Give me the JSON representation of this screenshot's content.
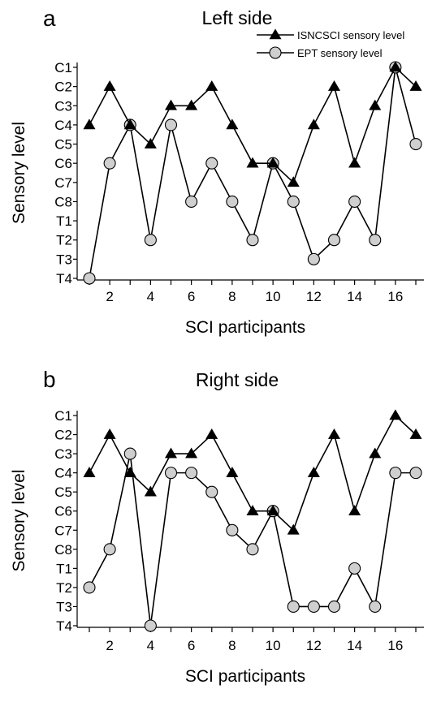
{
  "chart_data": [
    {
      "panel_letter": "a",
      "type": "line",
      "title": "Left side",
      "xlabel": "SCI participants",
      "ylabel": "Sensory level",
      "x": [
        1,
        2,
        3,
        4,
        5,
        6,
        7,
        8,
        9,
        10,
        11,
        12,
        13,
        14,
        15,
        16,
        17
      ],
      "x_tick_labels": [
        "2",
        "4",
        "6",
        "8",
        "10",
        "12",
        "14",
        "16"
      ],
      "x_tick_values": [
        2,
        4,
        6,
        8,
        10,
        12,
        14,
        16
      ],
      "y_categories": [
        "C1",
        "C2",
        "C3",
        "C4",
        "C5",
        "C6",
        "C7",
        "C8",
        "T1",
        "T2",
        "T3",
        "T4"
      ],
      "y_axis_inverted": true,
      "series": [
        {
          "name": "ISNCSCI sensory level",
          "marker": "triangle",
          "color": "#000000",
          "values": [
            "C4",
            "C2",
            "C4",
            "C5",
            "C3",
            "C3",
            "C2",
            "C4",
            "C6",
            "C6",
            "C7",
            "C4",
            "C2",
            "C6",
            "C3",
            "C1",
            "C2"
          ]
        },
        {
          "name": "EPT sensory level",
          "marker": "circle",
          "color": "#cfcfcf",
          "values": [
            "T4",
            "C6",
            "C4",
            "T2",
            "C4",
            "C8",
            "C6",
            "C8",
            "T2",
            "C6",
            "C8",
            "T3",
            "T2",
            "C8",
            "T2",
            "C1",
            "C5"
          ]
        }
      ],
      "legend_position": "top-right",
      "grid": false
    },
    {
      "panel_letter": "b",
      "type": "line",
      "title": "Right side",
      "xlabel": "SCI participants",
      "ylabel": "Sensory level",
      "x": [
        1,
        2,
        3,
        4,
        5,
        6,
        7,
        8,
        9,
        10,
        11,
        12,
        13,
        14,
        15,
        16,
        17
      ],
      "x_tick_labels": [
        "2",
        "4",
        "6",
        "8",
        "10",
        "12",
        "14",
        "16"
      ],
      "x_tick_values": [
        2,
        4,
        6,
        8,
        10,
        12,
        14,
        16
      ],
      "y_categories": [
        "C1",
        "C2",
        "C3",
        "C4",
        "C5",
        "C6",
        "C7",
        "C8",
        "T1",
        "T2",
        "T3",
        "T4"
      ],
      "y_axis_inverted": true,
      "series": [
        {
          "name": "ISNCSCI sensory level",
          "marker": "triangle",
          "color": "#000000",
          "values": [
            "C4",
            "C2",
            "C4",
            "C5",
            "C3",
            "C3",
            "C2",
            "C4",
            "C6",
            "C6",
            "C7",
            "C4",
            "C2",
            "C6",
            "C3",
            "C1",
            "C2"
          ]
        },
        {
          "name": "EPT sensory level",
          "marker": "circle",
          "color": "#cfcfcf",
          "values": [
            "T2",
            "C8",
            "C3",
            "T4",
            "C4",
            "C4",
            "C5",
            "C7",
            "C8",
            "C6",
            "T3",
            "T3",
            "T3",
            "T1",
            "T3",
            "C4",
            "C4"
          ]
        }
      ],
      "legend_position": "none",
      "grid": false
    }
  ]
}
